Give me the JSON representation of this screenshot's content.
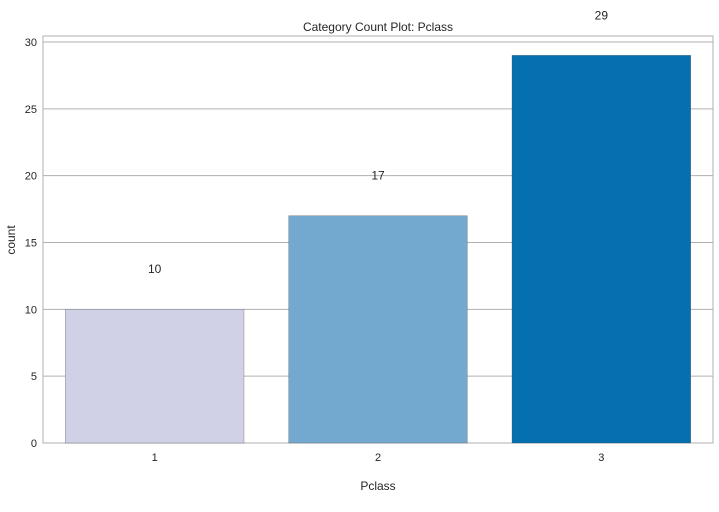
{
  "chart_data": {
    "type": "bar",
    "title": "Category Count Plot: Pclass",
    "xlabel": "Pclass",
    "ylabel": "count",
    "categories": [
      "1",
      "2",
      "3"
    ],
    "values": [
      10,
      17,
      29
    ],
    "data_labels": [
      "10",
      "17",
      "29"
    ],
    "ylim": [
      0,
      30.45
    ],
    "yticks": [
      0,
      5,
      10,
      15,
      20,
      25,
      30
    ],
    "grid": "horizontal",
    "colors": [
      "#d0d1e6",
      "#74a9cf",
      "#0570b0"
    ],
    "legend": "none"
  }
}
